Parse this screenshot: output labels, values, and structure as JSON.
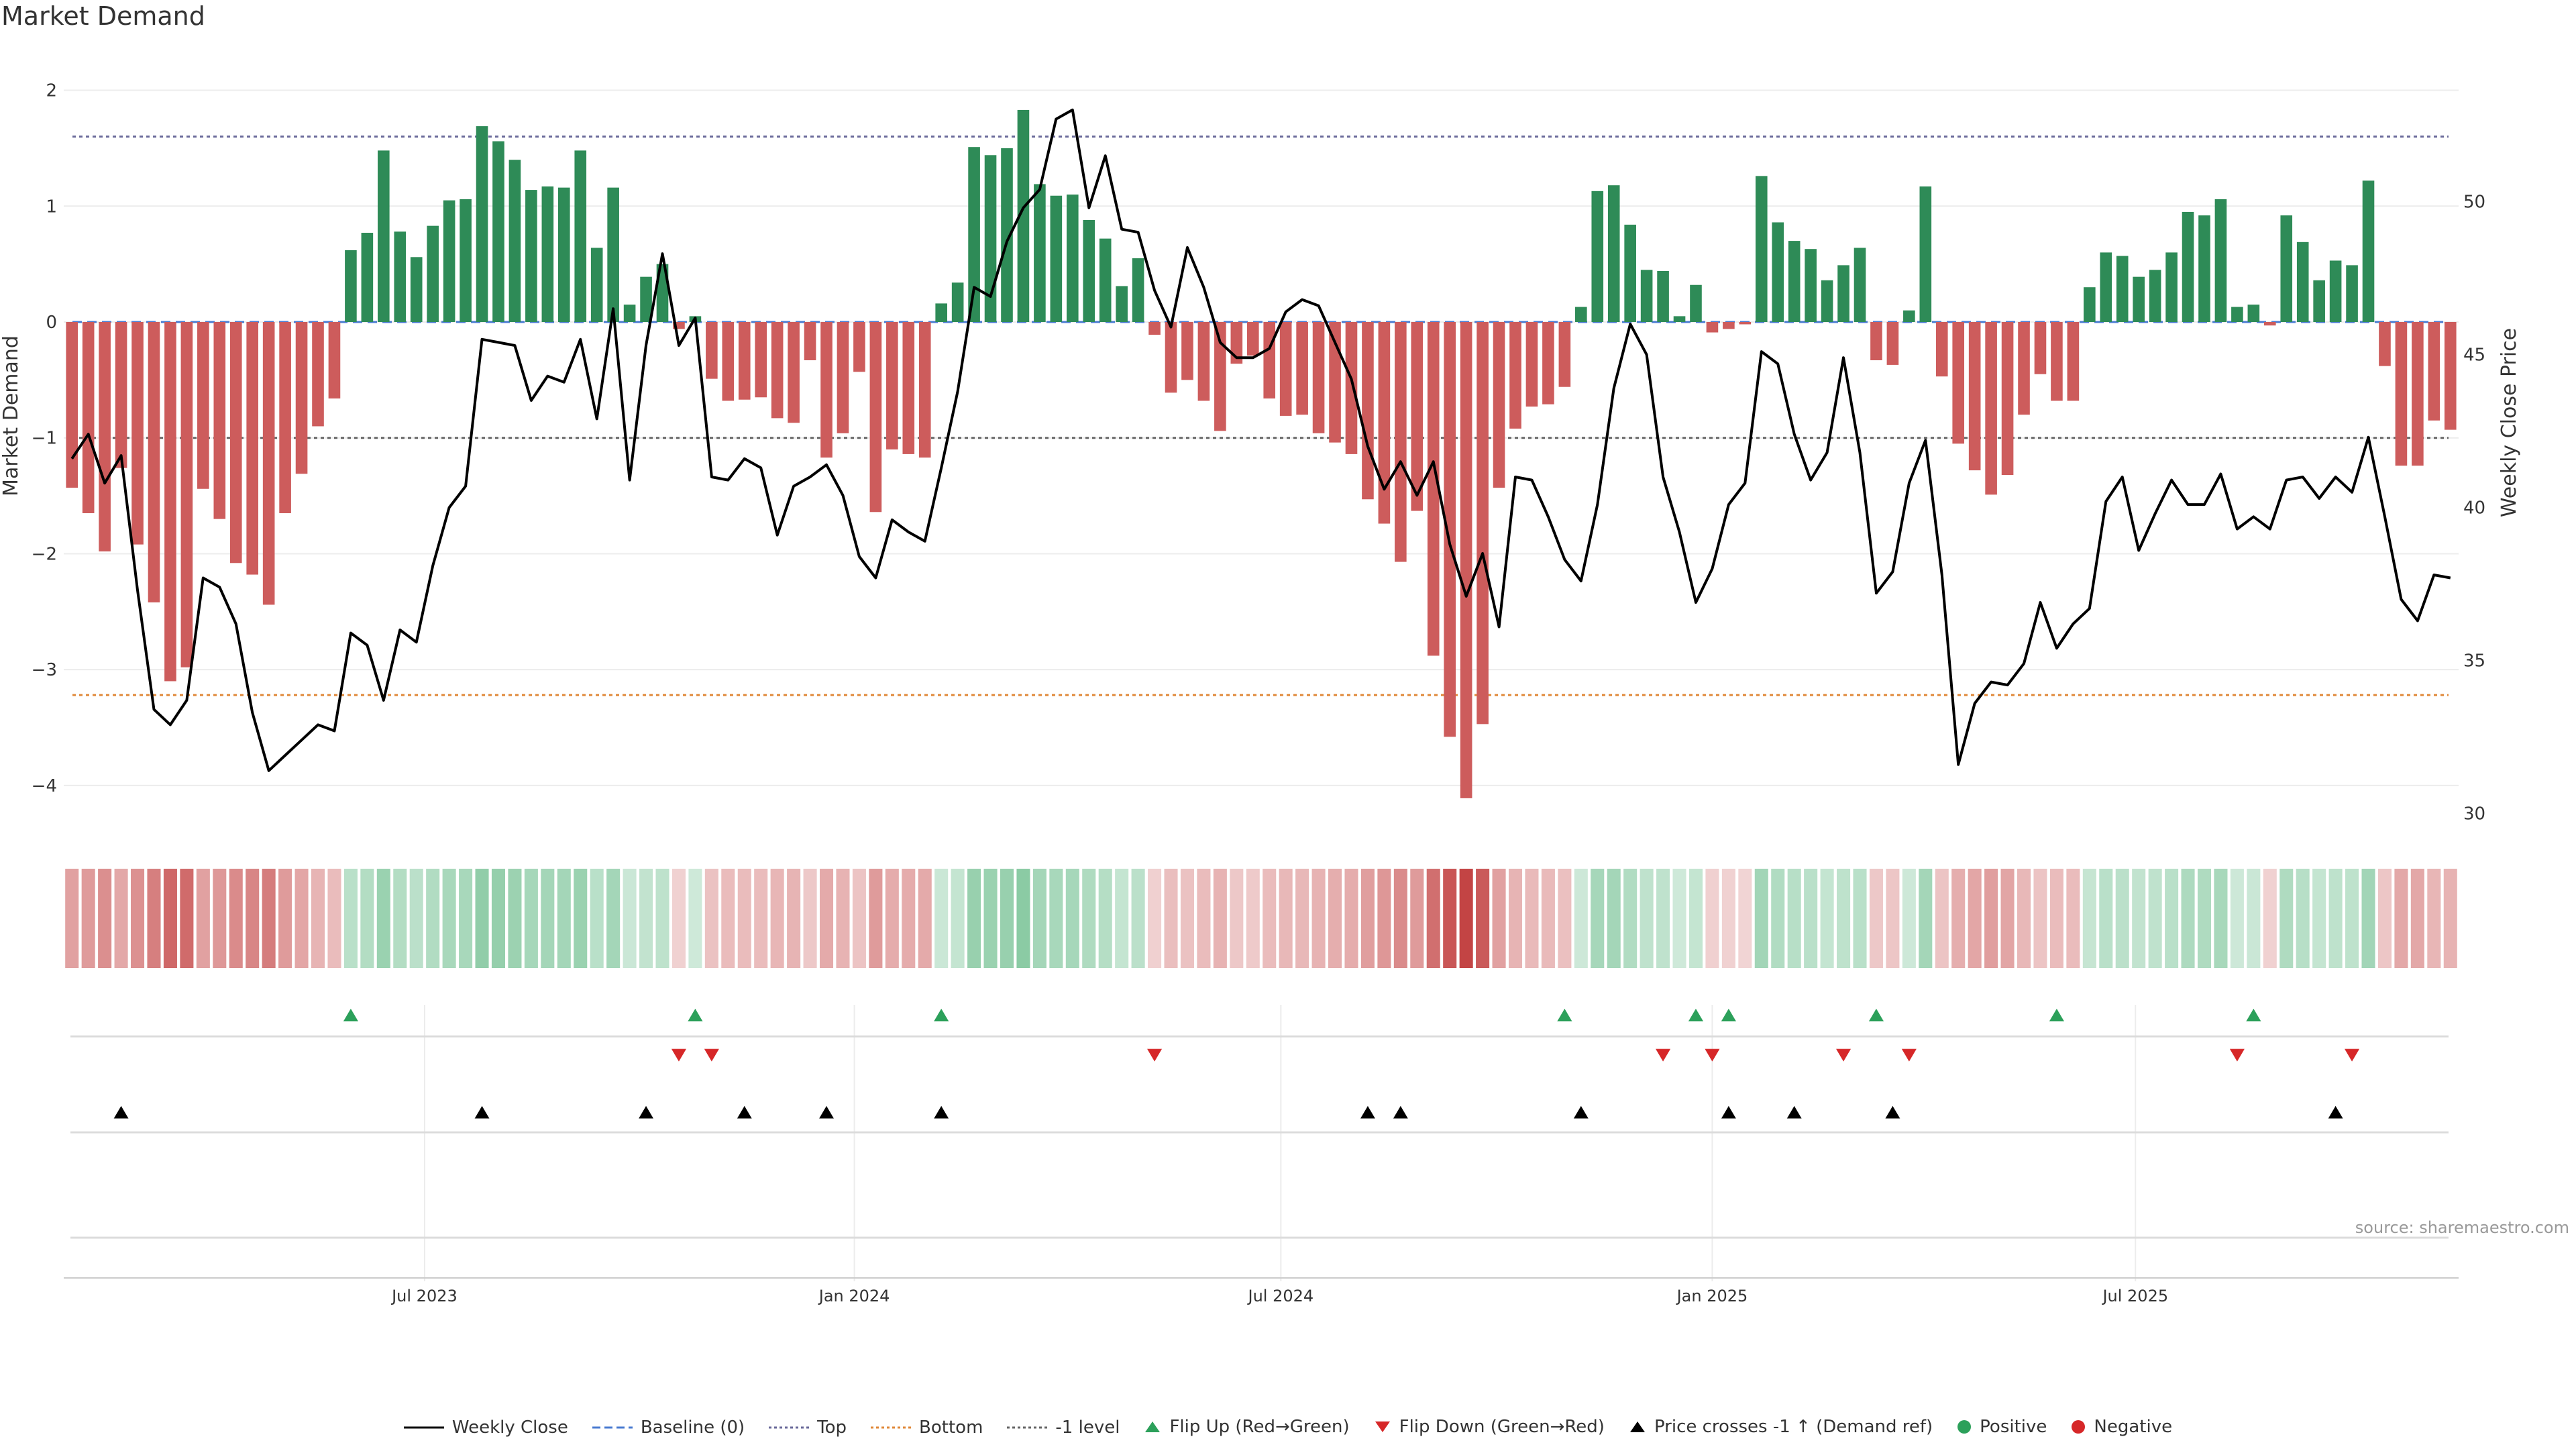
{
  "title": "Market Demand",
  "source_note": "source: sharemaestro.com",
  "colors": {
    "positive": "#2e8b57",
    "negative": "#cd5c5c",
    "price_line": "#000000",
    "baseline": "#4a7bd1",
    "top_line": "#6a6a9a",
    "bottom_line": "#e0893a",
    "minus_one_line": "#666666",
    "flip_up": "#2ca05a",
    "flip_down": "#d62728",
    "cross_marker": "#000000",
    "heat_pos": "#2ca05a",
    "heat_neg": "#c03a3a"
  },
  "chart_data": {
    "type": "bar",
    "title": "Market Demand",
    "ylabel": "Market Demand",
    "y2label": "Weekly Close Price",
    "ylim": [
      -4.4,
      2.2
    ],
    "y2lim": [
      29.4,
      54.4
    ],
    "yticks": [
      {
        "value": 2,
        "label": "2"
      },
      {
        "value": 1,
        "label": "1"
      },
      {
        "value": 0,
        "label": "0"
      },
      {
        "value": -1,
        "label": "−1"
      },
      {
        "value": -2,
        "label": "−2"
      },
      {
        "value": -3,
        "label": "−3"
      },
      {
        "value": -4,
        "label": "−4"
      }
    ],
    "y2ticks": [
      {
        "value": 50,
        "label": "50"
      },
      {
        "value": 45,
        "label": "45"
      },
      {
        "value": 40,
        "label": "40"
      },
      {
        "value": 35,
        "label": "35"
      },
      {
        "value": 30,
        "label": "30"
      }
    ],
    "xticks": [
      {
        "index": 21.5,
        "label": "Jul 2023"
      },
      {
        "index": 47.7,
        "label": "Jan 2024"
      },
      {
        "index": 73.7,
        "label": "Jul 2024"
      },
      {
        "index": 100,
        "label": "Jan 2025"
      },
      {
        "index": 125.8,
        "label": "Jul 2025"
      }
    ],
    "reference_lines": {
      "baseline": 0,
      "top": 1.6,
      "bottom": -3.22,
      "minus_one": -1.0
    },
    "demand": [
      -1.43,
      -1.65,
      -1.98,
      -1.26,
      -1.92,
      -2.42,
      -3.1,
      -2.98,
      -1.44,
      -1.7,
      -2.08,
      -2.18,
      -2.44,
      -1.65,
      -1.31,
      -0.9,
      -0.66,
      0.62,
      0.77,
      1.48,
      0.78,
      0.56,
      0.83,
      1.05,
      1.06,
      1.69,
      1.56,
      1.4,
      1.14,
      1.17,
      1.16,
      1.48,
      0.64,
      1.16,
      0.15,
      0.39,
      0.5,
      -0.06,
      0.05,
      -0.49,
      -0.68,
      -0.67,
      -0.65,
      -0.83,
      -0.87,
      -0.33,
      -1.17,
      -0.96,
      -0.43,
      -1.64,
      -1.1,
      -1.14,
      -1.17,
      0.16,
      0.34,
      1.51,
      1.44,
      1.5,
      1.83,
      1.19,
      1.09,
      1.1,
      0.88,
      0.72,
      0.31,
      0.55,
      -0.11,
      -0.61,
      -0.5,
      -0.68,
      -0.94,
      -0.36,
      -0.29,
      -0.66,
      -0.81,
      -0.8,
      -0.96,
      -1.04,
      -1.14,
      -1.53,
      -1.74,
      -2.07,
      -1.63,
      -2.88,
      -3.58,
      -4.11,
      -3.47,
      -1.43,
      -0.92,
      -0.73,
      -0.71,
      -0.56,
      0.13,
      1.13,
      1.18,
      0.84,
      0.45,
      0.44,
      0.05,
      0.32,
      -0.09,
      -0.06,
      -0.02,
      1.26,
      0.86,
      0.7,
      0.63,
      0.36,
      0.49,
      0.64,
      -0.33,
      -0.37,
      0.1,
      1.17,
      -0.47,
      -1.05,
      -1.28,
      -1.49,
      -1.32,
      -0.8,
      -0.45,
      -0.68,
      -0.68,
      0.3,
      0.6,
      0.57,
      0.39,
      0.45,
      0.6,
      0.95,
      0.92,
      1.06,
      0.13,
      0.15,
      -0.03,
      0.92,
      0.69,
      0.36,
      0.53,
      0.49,
      1.22,
      -0.38,
      -1.24,
      -1.24,
      -0.85,
      -0.93
    ],
    "price": [
      41.6,
      42.4,
      40.8,
      41.7,
      37.3,
      33.4,
      32.9,
      33.7,
      37.7,
      37.4,
      36.2,
      33.3,
      31.4,
      31.9,
      32.4,
      32.9,
      32.7,
      35.9,
      35.5,
      33.7,
      36.0,
      35.6,
      38.1,
      40.0,
      40.7,
      45.5,
      45.4,
      45.3,
      43.5,
      44.3,
      44.1,
      45.5,
      42.9,
      46.5,
      40.9,
      45.3,
      48.3,
      45.3,
      46.2,
      41.0,
      40.9,
      41.6,
      41.3,
      39.1,
      40.7,
      41.0,
      41.4,
      40.4,
      38.4,
      37.7,
      39.6,
      39.2,
      38.9,
      41.3,
      43.8,
      47.2,
      46.9,
      48.7,
      49.8,
      50.4,
      52.7,
      53.0,
      49.8,
      51.5,
      49.1,
      49.0,
      47.1,
      45.9,
      48.5,
      47.2,
      45.4,
      44.9,
      44.9,
      45.2,
      46.4,
      46.8,
      46.6,
      45.4,
      44.2,
      42.0,
      40.6,
      41.5,
      40.4,
      41.5,
      38.8,
      37.1,
      38.5,
      36.1,
      41.0,
      40.9,
      39.7,
      38.3,
      37.6,
      40.1,
      43.9,
      46.0,
      45.0,
      41.0,
      39.2,
      36.9,
      38.0,
      40.1,
      40.8,
      45.1,
      44.7,
      42.4,
      40.9,
      41.8,
      44.9,
      41.8,
      37.2,
      37.9,
      40.8,
      42.2,
      37.8,
      31.6,
      33.6,
      34.3,
      34.2,
      34.9,
      36.9,
      35.4,
      36.2,
      36.7,
      40.2,
      41.0,
      38.6,
      39.8,
      40.9,
      40.1,
      40.1,
      41.1,
      39.3,
      39.7,
      39.3,
      40.9,
      41.0,
      40.3,
      41.0,
      40.5,
      42.3,
      39.7,
      37.0,
      36.3,
      37.8,
      37.7
    ],
    "heat_rows": [
      {
        "name": "Flip Up (Red→Green)",
        "marker": "tri-up",
        "color": "flip_up",
        "indices": [
          17,
          38,
          53,
          91,
          99,
          101,
          110,
          121,
          133
        ]
      },
      {
        "name": "Flip Down (Green→Red)",
        "marker": "tri-down",
        "color": "flip_down",
        "indices": [
          37,
          39,
          66,
          97,
          100,
          108,
          112,
          132,
          139
        ]
      },
      {
        "name": "Price crosses -1 ↑ (Demand ref)",
        "marker": "tri-up",
        "color": "cross_marker",
        "indices": [
          3,
          25,
          35,
          41,
          46,
          53,
          79,
          81,
          92,
          101,
          105,
          111,
          138
        ]
      }
    ]
  },
  "legend": [
    {
      "label": "Weekly Close",
      "symbol": "line-solid",
      "color": "price_line"
    },
    {
      "label": "Baseline (0)",
      "symbol": "line-dashed",
      "color": "baseline"
    },
    {
      "label": "Top",
      "symbol": "line-dotted",
      "color": "top_line"
    },
    {
      "label": "Bottom",
      "symbol": "line-dotted",
      "color": "bottom_line"
    },
    {
      "label": "-1 level",
      "symbol": "line-dotted",
      "color": "minus_one_line"
    },
    {
      "label": "Flip Up (Red→Green)",
      "symbol": "tri-up",
      "color": "flip_up"
    },
    {
      "label": "Flip Down (Green→Red)",
      "symbol": "tri-down",
      "color": "flip_down"
    },
    {
      "label": "Price crosses -1 ↑ (Demand ref)",
      "symbol": "tri-up",
      "color": "cross_marker"
    },
    {
      "label": "Positive",
      "symbol": "dot",
      "color": "flip_up"
    },
    {
      "label": "Negative",
      "symbol": "dot",
      "color": "flip_down"
    }
  ]
}
